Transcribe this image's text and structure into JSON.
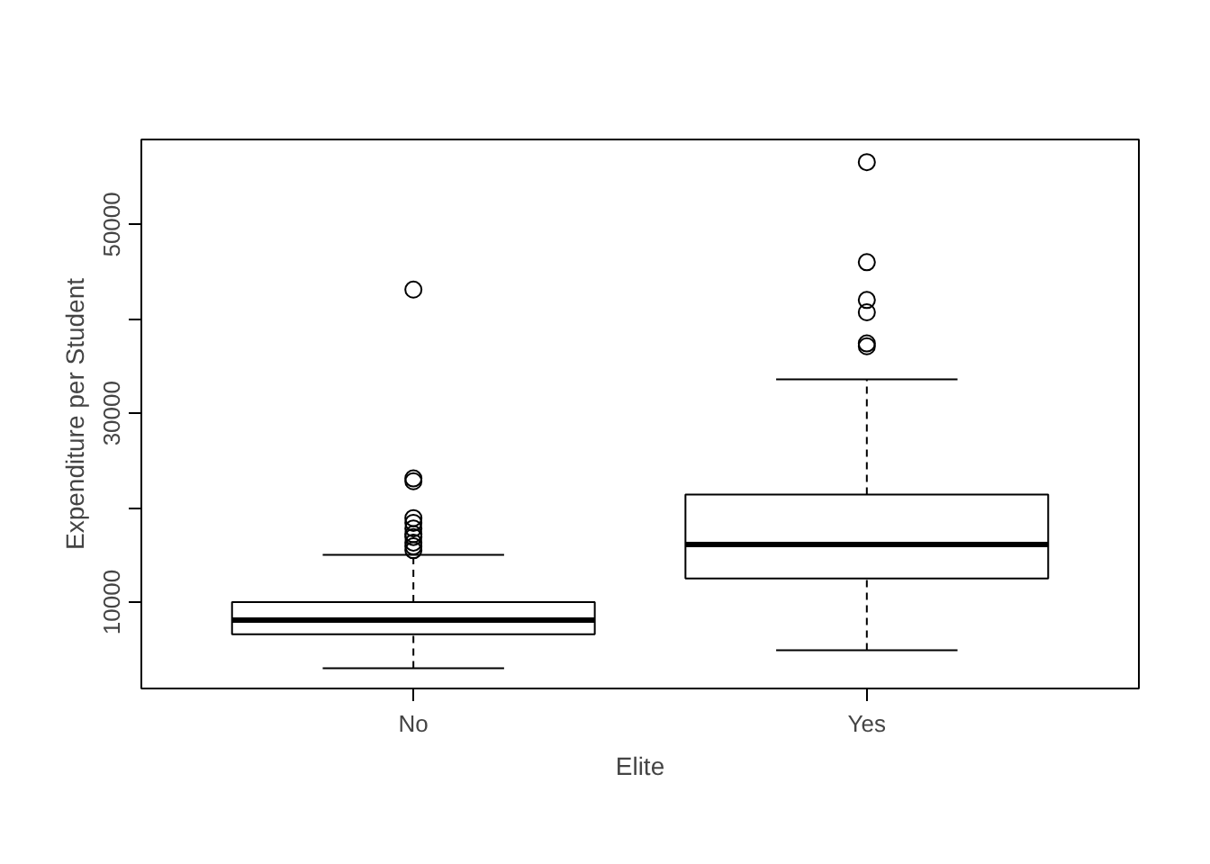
{
  "chart_data": {
    "type": "box",
    "xlabel": "Elite",
    "ylabel": "Expenditure per Student",
    "categories": [
      "No",
      "Yes"
    ],
    "boxes": [
      {
        "low": 3000,
        "q1": 6600,
        "median": 8100,
        "q3": 10000,
        "high": 15000,
        "outliers": [
          43100,
          23100,
          22800,
          18900,
          18400,
          17800,
          17200,
          16900,
          16300,
          15900,
          15500
        ]
      },
      {
        "low": 4900,
        "q1": 12500,
        "median": 16100,
        "q3": 21400,
        "high": 33600,
        "outliers": [
          56600,
          46000,
          42000,
          40700,
          37400,
          37100
        ]
      }
    ],
    "ylim": [
      850,
      59000
    ],
    "yticks": [
      {
        "value": 10000,
        "label": "10000"
      },
      {
        "value": 20000,
        "label": null
      },
      {
        "value": 30000,
        "label": "30000"
      },
      {
        "value": 40000,
        "label": null
      },
      {
        "value": 50000,
        "label": "50000"
      }
    ],
    "grid": false,
    "marker": "circle"
  }
}
